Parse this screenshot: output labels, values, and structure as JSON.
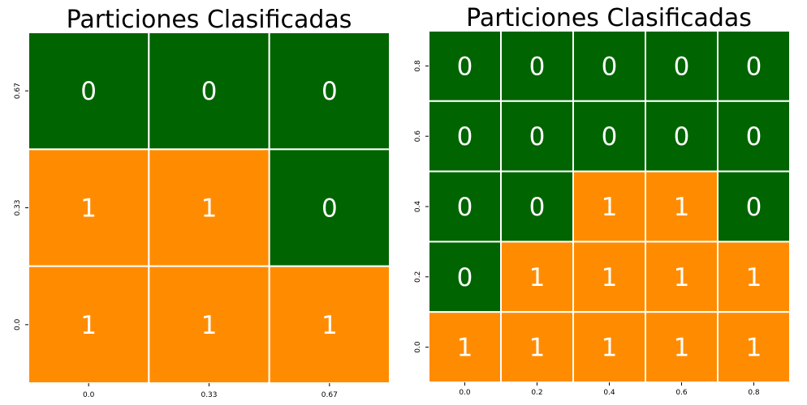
{
  "colors": {
    "class_0": "#006400",
    "class_1": "#FF8C00",
    "cell_border": "#ffffff",
    "label_text": "#ffffff"
  },
  "chart_data": [
    {
      "type": "heatmap",
      "title": "Particiones Clasificadas",
      "xlabel": "",
      "ylabel": "",
      "x_tick_labels": [
        "0.0",
        "0.33",
        "0.67"
      ],
      "y_tick_labels": [
        "0.67",
        "0.33",
        "0.0"
      ],
      "values": [
        [
          0,
          0,
          0
        ],
        [
          1,
          1,
          0
        ],
        [
          1,
          1,
          1
        ]
      ]
    },
    {
      "type": "heatmap",
      "title": "Particiones Clasificadas",
      "xlabel": "",
      "ylabel": "",
      "x_tick_labels": [
        "0.0",
        "0.2",
        "0.4",
        "0.6",
        "0.8"
      ],
      "y_tick_labels": [
        "0.8",
        "0.6",
        "0.4",
        "0.2",
        "0.0"
      ],
      "values": [
        [
          0,
          0,
          0,
          0,
          0
        ],
        [
          0,
          0,
          0,
          0,
          0
        ],
        [
          0,
          0,
          1,
          1,
          0
        ],
        [
          0,
          1,
          1,
          1,
          1
        ],
        [
          1,
          1,
          1,
          1,
          1
        ]
      ]
    }
  ]
}
